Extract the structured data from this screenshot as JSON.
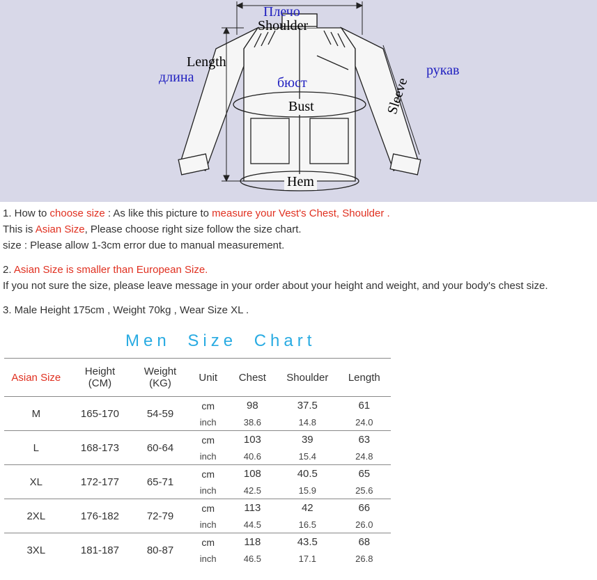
{
  "diagram": {
    "bg_color": "#d8d8e8",
    "labels": {
      "shoulder_ru": "Плечо",
      "shoulder_en": "Shoulder",
      "length_en": "Length",
      "length_ru": "длина",
      "bust_ru": "бюст",
      "bust_en": "Bust",
      "sleeve_en": "Sleeve",
      "sleeve_ru": "рукав",
      "hem_en": "Hem"
    },
    "stroke": "#222",
    "fill": "#f8f8f8"
  },
  "notes": {
    "n1_a": "1. How to ",
    "n1_b": "choose size",
    "n1_c": " : As like this picture to ",
    "n1_d": "measure your Vest's Chest, Shoulder .",
    "n2_a": "This is ",
    "n2_b": "Asian Size",
    "n2_c": ", Please choose right size follow the size chart.",
    "n3": "size : Please allow 1-3cm error due to manual measurement.",
    "n4_a": "2. ",
    "n4_b": "Asian Size is smaller than European Size.",
    "n5": "If you not sure the size, please leave message in your order about your height and weight, and your body's chest size.",
    "n6": "3. Male Height 175cm , Weight 70kg , Wear Size XL ."
  },
  "chart_title": "Men  Size  Chart",
  "headers": {
    "asian_size": "Asian Size",
    "height": "Height (CM)",
    "weight": "Weight (KG)",
    "unit": "Unit",
    "chest": "Chest",
    "shoulder": "Shoulder",
    "length": "Length"
  },
  "units": {
    "cm": "cm",
    "inch": "inch"
  },
  "rows": [
    {
      "size": "M",
      "height": "165-170",
      "weight": "54-59",
      "chest_cm": "98",
      "chest_in": "38.6",
      "shoulder_cm": "37.5",
      "shoulder_in": "14.8",
      "length_cm": "61",
      "length_in": "24.0"
    },
    {
      "size": "L",
      "height": "168-173",
      "weight": "60-64",
      "chest_cm": "103",
      "chest_in": "40.6",
      "shoulder_cm": "39",
      "shoulder_in": "15.4",
      "length_cm": "63",
      "length_in": "24.8"
    },
    {
      "size": "XL",
      "height": "172-177",
      "weight": "65-71",
      "chest_cm": "108",
      "chest_in": "42.5",
      "shoulder_cm": "40.5",
      "shoulder_in": "15.9",
      "length_cm": "65",
      "length_in": "25.6"
    },
    {
      "size": "2XL",
      "height": "176-182",
      "weight": "72-79",
      "chest_cm": "113",
      "chest_in": "44.5",
      "shoulder_cm": "42",
      "shoulder_in": "16.5",
      "length_cm": "66",
      "length_in": "26.0"
    },
    {
      "size": "3XL",
      "height": "181-187",
      "weight": "80-87",
      "chest_cm": "118",
      "chest_in": "46.5",
      "shoulder_cm": "43.5",
      "shoulder_in": "17.1",
      "length_cm": "68",
      "length_in": "26.8"
    }
  ],
  "col_widths": [
    "90px",
    "90px",
    "80px",
    "55px",
    "70px",
    "85px",
    "75px"
  ]
}
